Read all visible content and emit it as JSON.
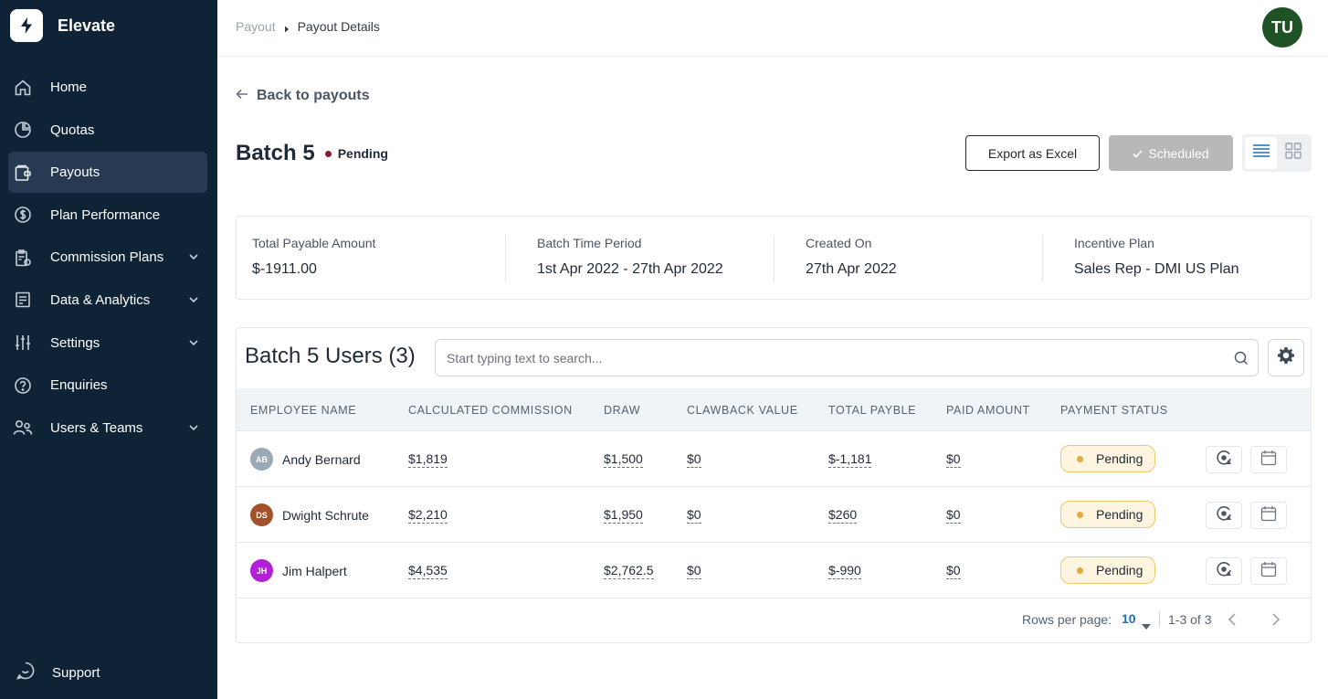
{
  "app": {
    "name": "Elevate"
  },
  "sidebar": {
    "items": [
      {
        "label": "Home",
        "icon": "home-icon",
        "active": false,
        "expandable": false
      },
      {
        "label": "Quotas",
        "icon": "pie-chart-icon",
        "active": false,
        "expandable": false
      },
      {
        "label": "Payouts",
        "icon": "wallet-icon",
        "active": true,
        "expandable": false
      },
      {
        "label": "Plan Performance",
        "icon": "dollar-circle-icon",
        "active": false,
        "expandable": false
      },
      {
        "label": "Commission Plans",
        "icon": "clipboard-icon",
        "active": false,
        "expandable": true
      },
      {
        "label": "Data & Analytics",
        "icon": "document-icon",
        "active": false,
        "expandable": true
      },
      {
        "label": "Settings",
        "icon": "sliders-icon",
        "active": false,
        "expandable": true
      },
      {
        "label": "Enquiries",
        "icon": "question-icon",
        "active": false,
        "expandable": false
      },
      {
        "label": "Users & Teams",
        "icon": "users-icon",
        "active": false,
        "expandable": true
      }
    ],
    "support_label": "Support"
  },
  "header": {
    "breadcrumb": {
      "parent": "Payout",
      "current": "Payout Details"
    },
    "user_initials": "TU"
  },
  "page": {
    "back_label": "Back to payouts",
    "title": "Batch 5",
    "status": "Pending",
    "export_label": "Export as Excel",
    "scheduled_label": "Scheduled"
  },
  "summary": [
    {
      "label": "Total Payable Amount",
      "value": "$-1911.00"
    },
    {
      "label": "Batch Time Period",
      "value": "1st Apr 2022 - 27th Apr 2022"
    },
    {
      "label": "Created On",
      "value": "27th Apr 2022"
    },
    {
      "label": "Incentive Plan",
      "value": "Sales Rep - DMI US Plan"
    }
  ],
  "users": {
    "title": "Batch 5 Users (3)",
    "search_placeholder": "Start typing text to search...",
    "columns": [
      "EMPLOYEE NAME",
      "CALCULATED COMMISSION",
      "DRAW",
      "CLAWBACK VALUE",
      "TOTAL PAYBLE",
      "PAID AMOUNT",
      "PAYMENT STATUS"
    ],
    "rows": [
      {
        "initials": "AB",
        "avatar_color": "#9aa9b4",
        "name": "Andy Bernard",
        "commission": "$1,819",
        "draw": "$1,500",
        "clawback": "$0",
        "total": "$-1,181",
        "paid": "$0",
        "status": "Pending"
      },
      {
        "initials": "DS",
        "avatar_color": "#a1522a",
        "name": "Dwight Schrute",
        "commission": "$2,210",
        "draw": "$1,950",
        "clawback": "$0",
        "total": "$260",
        "paid": "$0",
        "status": "Pending"
      },
      {
        "initials": "JH",
        "avatar_color": "#b11fd6",
        "name": "Jim Halpert",
        "commission": "$4,535",
        "draw": "$2,762.5",
        "clawback": "$0",
        "total": "$-990",
        "paid": "$0",
        "status": "Pending"
      }
    ],
    "pagination": {
      "rows_per_page_label": "Rows per page:",
      "rows_per_page": "10",
      "range": "1-3 of 3"
    }
  },
  "colors": {
    "sidebar_bg": "#0f2337",
    "sidebar_active": "#263b51",
    "pending_dot": "#8b1a2b",
    "pill_bg": "#fdf5df",
    "pill_border": "#ecc86e",
    "accent": "#1d6fb8"
  }
}
